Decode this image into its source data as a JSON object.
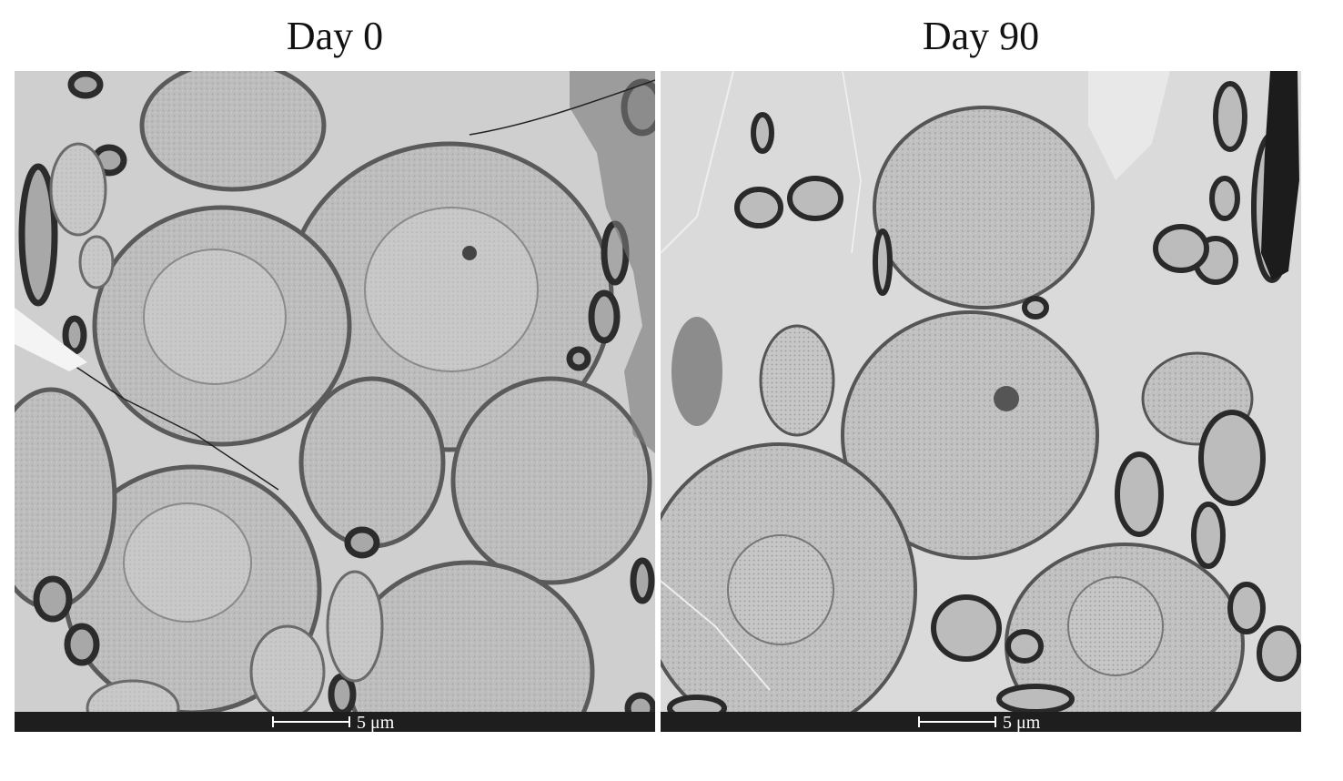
{
  "panels": [
    {
      "title": "Day 0",
      "scale_label": "5 μm"
    },
    {
      "title": "Day 90",
      "scale_label": "5 μm"
    }
  ],
  "colors": {
    "background": "#ffffff",
    "tissue": "#c9c9c9",
    "cytoplasm": "#b4b4b4",
    "nucleus": "#cdcdcd",
    "myelin": "#2c2c2c",
    "scale_bar": "#1e1e1e",
    "scale_text": "#ffffff"
  }
}
